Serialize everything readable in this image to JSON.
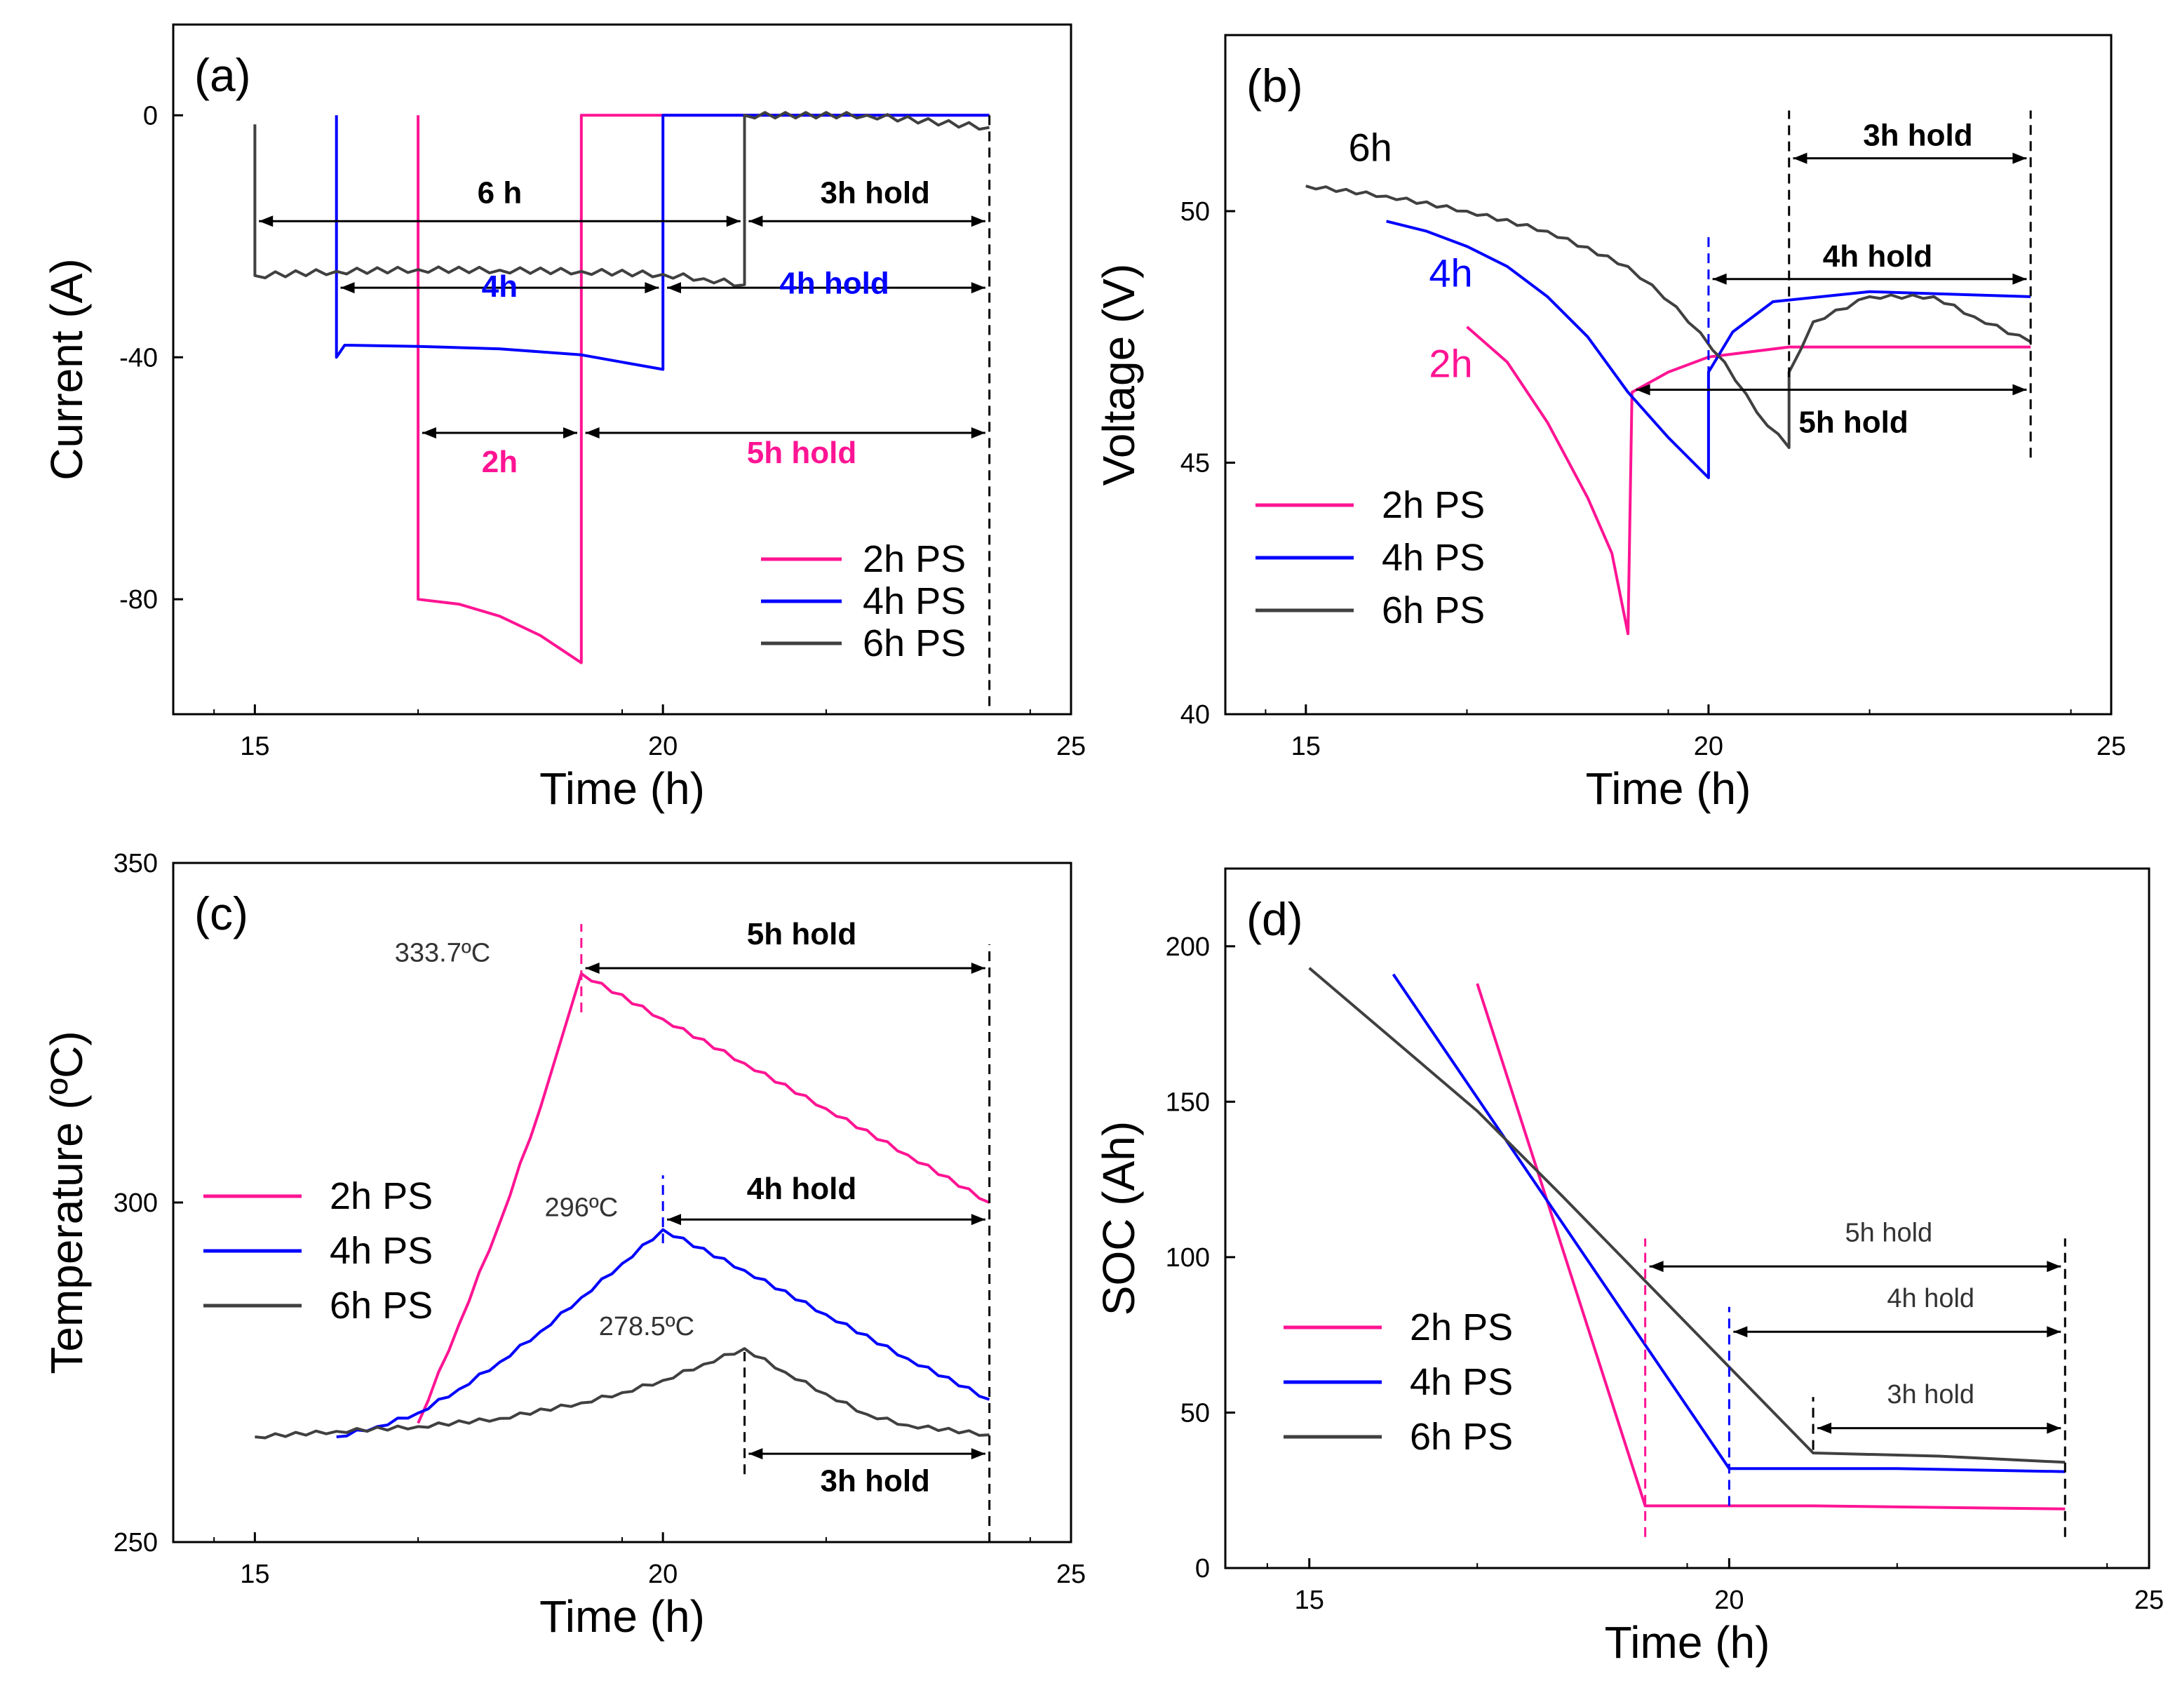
{
  "figure": {
    "background": "#ffffff"
  },
  "chart_data": [
    {
      "panel": "(a)",
      "type": "line",
      "xlabel": "Time (h)",
      "ylabel": "Current (A)",
      "xlim": [
        14,
        25
      ],
      "ylim": [
        -99,
        15
      ],
      "xticks": [
        "15",
        "20",
        "25"
      ],
      "yticks": [
        "0",
        "-40",
        "-80"
      ],
      "legend_position": "bottom-right",
      "series": [
        {
          "name": "2h PS",
          "color": "#ff1493",
          "points": [
            [
              17.0,
              0
            ],
            [
              17.0,
              -80.0
            ],
            [
              17.5,
              -80.8
            ],
            [
              18.0,
              -82.8
            ],
            [
              18.5,
              -86.0
            ],
            [
              19.0,
              -90.5
            ],
            [
              19.0,
              0
            ],
            [
              24.0,
              0
            ]
          ]
        },
        {
          "name": "4h PS",
          "color": "#0000ff",
          "points": [
            [
              16.0,
              0
            ],
            [
              16.0,
              -40.0
            ],
            [
              16.1,
              -38.0
            ],
            [
              17.0,
              -38.2
            ],
            [
              18.0,
              -38.6
            ],
            [
              19.0,
              -39.6
            ],
            [
              19.5,
              -40.8
            ],
            [
              20.0,
              -42.0
            ],
            [
              20.0,
              0
            ],
            [
              24.0,
              0
            ]
          ]
        },
        {
          "name": "6h PS",
          "color": "#404040",
          "points": [
            [
              15.0,
              -1.5
            ],
            [
              15.0,
              -26.5
            ],
            [
              16.0,
              -25.8
            ],
            [
              17.0,
              -25.5
            ],
            [
              18.0,
              -25.6
            ],
            [
              19.0,
              -25.8
            ],
            [
              20.0,
              -26.3
            ],
            [
              20.5,
              -27.0
            ],
            [
              21.0,
              -28.0
            ],
            [
              21.0,
              0
            ],
            [
              22.5,
              0
            ],
            [
              24.0,
              -2.0
            ]
          ]
        }
      ],
      "annotations": [
        {
          "text": "6 h",
          "color": "#000000",
          "x": 18.0,
          "y": -14.5
        },
        {
          "text": "3h hold",
          "color": "#000000",
          "x": 22.6,
          "y": -14.5
        },
        {
          "text": "4h",
          "color": "#0000ff",
          "x": 18.0,
          "y": -30.0
        },
        {
          "text": "4h hold",
          "color": "#0000ff",
          "x": 22.1,
          "y": -29.5
        },
        {
          "text": "2h",
          "color": "#ff1493",
          "x": 18.0,
          "y": -59.0
        },
        {
          "text": "5h hold",
          "color": "#ff1493",
          "x": 21.7,
          "y": -57.5
        }
      ]
    },
    {
      "panel": "(b)",
      "type": "line",
      "xlabel": "Time (h)",
      "ylabel": "Voltage (V)",
      "xlim": [
        14,
        25
      ],
      "ylim": [
        40,
        53.5
      ],
      "xticks": [
        "15",
        "20",
        "25"
      ],
      "yticks": [
        "40",
        "45",
        "50"
      ],
      "legend_position": "bottom-left",
      "series": [
        {
          "name": "2h PS",
          "color": "#ff1493",
          "points": [
            [
              17.0,
              47.7
            ],
            [
              17.5,
              47.0
            ],
            [
              18.0,
              45.8
            ],
            [
              18.5,
              44.3
            ],
            [
              18.8,
              43.2
            ],
            [
              19.0,
              41.6
            ],
            [
              19.05,
              46.4
            ],
            [
              19.5,
              46.8
            ],
            [
              20.0,
              47.1
            ],
            [
              21.0,
              47.3
            ],
            [
              22.0,
              47.3
            ],
            [
              24.0,
              47.3
            ]
          ]
        },
        {
          "name": "4h PS",
          "color": "#0000ff",
          "points": [
            [
              16.0,
              49.8
            ],
            [
              16.5,
              49.6
            ],
            [
              17.0,
              49.3
            ],
            [
              17.5,
              48.9
            ],
            [
              18.0,
              48.3
            ],
            [
              18.5,
              47.5
            ],
            [
              19.0,
              46.4
            ],
            [
              19.5,
              45.5
            ],
            [
              20.0,
              44.7
            ],
            [
              20.0,
              46.8
            ],
            [
              20.3,
              47.6
            ],
            [
              20.8,
              48.2
            ],
            [
              22.0,
              48.4
            ],
            [
              24.0,
              48.3
            ]
          ]
        },
        {
          "name": "6h PS",
          "color": "#404040",
          "points": [
            [
              15.0,
              50.5
            ],
            [
              16.0,
              50.3
            ],
            [
              17.0,
              50.0
            ],
            [
              18.0,
              49.6
            ],
            [
              19.0,
              48.9
            ],
            [
              19.6,
              48.1
            ],
            [
              20.2,
              47.0
            ],
            [
              20.6,
              46.0
            ],
            [
              21.0,
              45.3
            ],
            [
              21.0,
              46.8
            ],
            [
              21.3,
              47.8
            ],
            [
              22.0,
              48.3
            ],
            [
              22.8,
              48.3
            ],
            [
              23.3,
              47.9
            ],
            [
              24.0,
              47.4
            ]
          ]
        }
      ],
      "annotations": [
        {
          "text": "6h",
          "color": "#000000",
          "x": 15.8,
          "y": 51.0
        },
        {
          "text": "4h",
          "color": "#0000ff",
          "x": 16.8,
          "y": 48.5
        },
        {
          "text": "2h",
          "color": "#ff1493",
          "x": 16.8,
          "y": 46.7
        },
        {
          "text": "3h hold",
          "color": "#000000",
          "x": 22.6,
          "y": 51.3
        },
        {
          "text": "4h hold",
          "color": "#000000",
          "x": 22.1,
          "y": 48.9
        },
        {
          "text": "5h hold",
          "color": "#000000",
          "x": 21.8,
          "y": 45.6
        }
      ]
    },
    {
      "panel": "(c)",
      "type": "line",
      "xlabel": "Time (h)",
      "ylabel": "Temperature (ºC)",
      "xlim": [
        14,
        25
      ],
      "ylim": [
        250,
        350
      ],
      "xticks": [
        "15",
        "20",
        "25"
      ],
      "yticks": [
        "250",
        "300",
        "350"
      ],
      "legend_position": "middle-left",
      "series": [
        {
          "name": "2h PS",
          "color": "#ff1493",
          "points": [
            [
              17.0,
              267.5
            ],
            [
              17.5,
              282.0
            ],
            [
              18.0,
              297.0
            ],
            [
              18.5,
              314.0
            ],
            [
              19.0,
              333.7
            ],
            [
              20.0,
              327.0
            ],
            [
              21.0,
              320.5
            ],
            [
              22.0,
              313.8
            ],
            [
              23.0,
              307.0
            ],
            [
              24.0,
              300.0
            ]
          ]
        },
        {
          "name": "4h PS",
          "color": "#0000ff",
          "points": [
            [
              16.0,
              265.5
            ],
            [
              16.5,
              267.0
            ],
            [
              17.0,
              269.0
            ],
            [
              17.5,
              272.5
            ],
            [
              18.0,
              276.5
            ],
            [
              18.5,
              281.0
            ],
            [
              19.0,
              286.0
            ],
            [
              19.5,
              291.0
            ],
            [
              20.0,
              296.0
            ],
            [
              21.0,
              290.0
            ],
            [
              22.0,
              283.5
            ],
            [
              23.0,
              277.0
            ],
            [
              24.0,
              271.0
            ]
          ]
        },
        {
          "name": "6h PS",
          "color": "#404040",
          "points": [
            [
              15.0,
              265.5
            ],
            [
              16.0,
              266.3
            ],
            [
              17.0,
              267.0
            ],
            [
              18.0,
              268.2
            ],
            [
              19.0,
              270.5
            ],
            [
              19.5,
              272.0
            ],
            [
              20.0,
              273.8
            ],
            [
              20.5,
              276.2
            ],
            [
              21.0,
              278.5
            ],
            [
              21.5,
              275.0
            ],
            [
              22.0,
              271.8
            ],
            [
              22.5,
              268.8
            ],
            [
              23.0,
              267.2
            ],
            [
              24.0,
              265.8
            ]
          ]
        }
      ],
      "annotations": [
        {
          "text": "333.7ºC",
          "color": "#333333",
          "x": 17.3,
          "y": 335.5
        },
        {
          "text": "296ºC",
          "color": "#333333",
          "x": 19.0,
          "y": 298.0
        },
        {
          "text": "278.5ºC",
          "color": "#333333",
          "x": 19.8,
          "y": 280.5
        },
        {
          "text": "5h hold",
          "color": "#000000",
          "x": 21.7,
          "y": 338.0
        },
        {
          "text": "4h hold",
          "color": "#000000",
          "x": 21.7,
          "y": 300.5
        },
        {
          "text": "3h hold",
          "color": "#000000",
          "x": 22.6,
          "y": 257.5
        }
      ]
    },
    {
      "panel": "(d)",
      "type": "line",
      "xlabel": "Time (h)",
      "ylabel": "SOC (Ah)",
      "xlim": [
        14,
        25
      ],
      "ylim": [
        0,
        225
      ],
      "xticks": [
        "15",
        "20",
        "25"
      ],
      "yticks": [
        "0",
        "50",
        "100",
        "150",
        "200"
      ],
      "legend_position": "bottom-left",
      "series": [
        {
          "name": "2h PS",
          "color": "#ff1493",
          "points": [
            [
              17.0,
              188
            ],
            [
              19.0,
              20
            ],
            [
              21.0,
              20
            ],
            [
              24.0,
              19
            ]
          ]
        },
        {
          "name": "4h PS",
          "color": "#0000ff",
          "points": [
            [
              16.0,
              191
            ],
            [
              20.0,
              32
            ],
            [
              22.0,
              32
            ],
            [
              24.0,
              31
            ]
          ]
        },
        {
          "name": "6h PS",
          "color": "#404040",
          "points": [
            [
              15.0,
              193
            ],
            [
              17.0,
              147
            ],
            [
              18.0,
              120
            ],
            [
              21.0,
              37
            ],
            [
              22.5,
              36
            ],
            [
              24.0,
              34
            ]
          ]
        }
      ],
      "annotations": [
        {
          "text": "5h hold",
          "color": "#000000",
          "x": 21.9,
          "y": 105
        },
        {
          "text": "4h hold",
          "color": "#000000",
          "x": 22.4,
          "y": 84
        },
        {
          "text": "3h hold",
          "color": "#000000",
          "x": 22.4,
          "y": 53
        }
      ]
    }
  ]
}
